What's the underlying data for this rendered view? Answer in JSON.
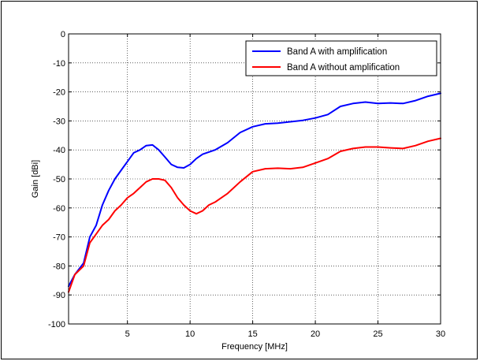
{
  "chart_data": {
    "type": "line",
    "title": "",
    "xlabel": "Frequency [MHz]",
    "ylabel": "Gain [dBi]",
    "xlim": [
      0.3,
      30
    ],
    "ylim": [
      -100,
      0
    ],
    "xticks": [
      5,
      10,
      15,
      20,
      25,
      30
    ],
    "yticks": [
      0,
      -10,
      -20,
      -30,
      -40,
      -50,
      -60,
      -70,
      -80,
      -90,
      -100
    ],
    "xtick_labels": [
      "5",
      "10",
      "15",
      "20",
      "25",
      "30"
    ],
    "ytick_labels": [
      "0",
      "-10",
      "-20",
      "-30",
      "-40",
      "-50",
      "-60",
      "-70",
      "-80",
      "-90",
      "-100"
    ],
    "grid": true,
    "grid_style": "dotted",
    "legend_position": "top-right",
    "series": [
      {
        "name": "Band A with amplification",
        "color": "#0000ff",
        "x": [
          0.3,
          0.8,
          1.5,
          2.0,
          2.5,
          3.0,
          3.5,
          4.0,
          4.5,
          5.0,
          5.5,
          6.0,
          6.5,
          7.0,
          7.5,
          8.0,
          8.5,
          9.0,
          9.5,
          10.0,
          10.5,
          11.0,
          12.0,
          13.0,
          14.0,
          15.0,
          16.0,
          17.0,
          18.0,
          19.0,
          20.0,
          21.0,
          22.0,
          23.0,
          24.0,
          25.0,
          26.0,
          27.0,
          28.0,
          29.0,
          30.0
        ],
        "y": [
          -87,
          -83,
          -79,
          -70,
          -66,
          -59,
          -54,
          -50,
          -47,
          -44,
          -41,
          -40,
          -38.5,
          -38.3,
          -40,
          -42.5,
          -45,
          -46,
          -46.2,
          -45,
          -43,
          -41.5,
          -40,
          -37.5,
          -34,
          -32,
          -31,
          -30.8,
          -30.3,
          -29.8,
          -29,
          -27.8,
          -25,
          -24,
          -23.5,
          -24,
          -23.8,
          -24,
          -23,
          -21.5,
          -20.5
        ]
      },
      {
        "name": "Band A without amplification",
        "color": "#ff0000",
        "x": [
          0.3,
          0.8,
          1.5,
          2.0,
          2.5,
          3.0,
          3.5,
          4.0,
          4.5,
          5.0,
          5.5,
          6.0,
          6.5,
          7.0,
          7.5,
          8.0,
          8.5,
          9.0,
          9.5,
          10.0,
          10.5,
          11.0,
          11.5,
          12.0,
          13.0,
          14.0,
          15.0,
          16.0,
          17.0,
          18.0,
          19.0,
          20.0,
          21.0,
          22.0,
          23.0,
          24.0,
          25.0,
          26.0,
          27.0,
          28.0,
          29.0,
          30.0
        ],
        "y": [
          -89,
          -83,
          -80,
          -72,
          -69,
          -66,
          -64,
          -61,
          -59,
          -56.5,
          -55,
          -53,
          -51,
          -50,
          -50,
          -50.5,
          -53,
          -56.5,
          -59,
          -61,
          -62,
          -61,
          -59,
          -58,
          -55,
          -51,
          -47.5,
          -46.5,
          -46.3,
          -46.5,
          -46,
          -44.5,
          -43,
          -40.5,
          -39.5,
          -39,
          -39,
          -39.3,
          -39.5,
          -38.5,
          -37,
          -36
        ]
      }
    ]
  }
}
